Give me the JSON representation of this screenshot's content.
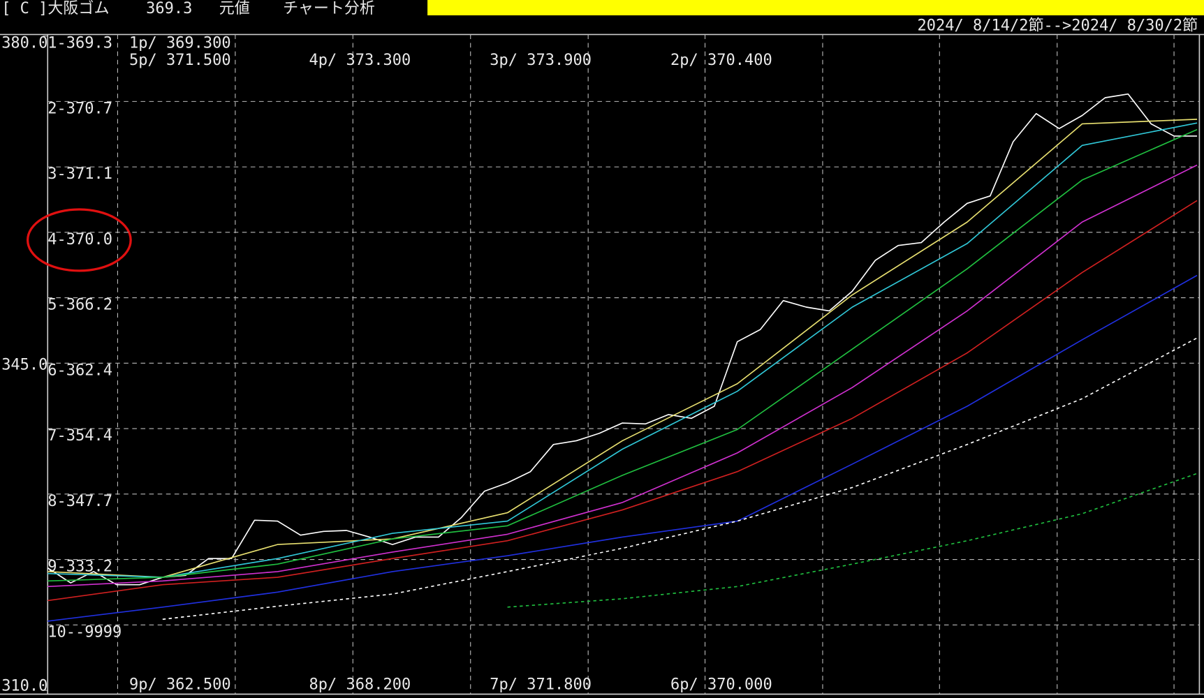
{
  "chart_data": {
    "type": "line",
    "header": {
      "name": "[ C ]大阪ゴム",
      "price": 369.3,
      "mode": "元値",
      "menu": "チャート分析"
    },
    "date_range": "2024/ 8/14/2節-->2024/ 8/30/2節",
    "ylim": [
      310,
      380
    ],
    "yticks": [
      {
        "value": 380,
        "label": "380.0"
      },
      {
        "value": 345,
        "label": "345.0"
      },
      {
        "value": 310,
        "label": "310.0"
      }
    ],
    "grid_lines": [
      373,
      366,
      359,
      352,
      345,
      338,
      331,
      324,
      317
    ],
    "row_labels": [
      "1-369.3",
      "2-370.7",
      "3-371.1",
      "4-370.0",
      "5-366.2",
      "6-362.4",
      "7-354.4",
      "8-347.7",
      "9-333.2",
      "10--9999"
    ],
    "annotations": [
      "1p/ 369.300",
      "5p/ 371.500",
      "4p/ 373.300",
      "3p/ 373.900",
      "2p/ 370.400",
      "9p/ 362.500",
      "8p/ 368.200",
      "7p/ 371.800",
      "6p/ 370.000"
    ],
    "xlim": [
      0,
      50
    ],
    "x": [
      0,
      1,
      2,
      3,
      4,
      5,
      6,
      7,
      8,
      9,
      10,
      11,
      12,
      13,
      14,
      15,
      16,
      17,
      18,
      19,
      20,
      21,
      22,
      23,
      24,
      25,
      26,
      27,
      28,
      29,
      30,
      31,
      32,
      33,
      34,
      35,
      36,
      37,
      38,
      39,
      40,
      41,
      42,
      43,
      44,
      45,
      46,
      47,
      48,
      49,
      50
    ],
    "series": [
      {
        "color": "#ffffff",
        "values": [
          323.1,
          321.5,
          322.7,
          321.3,
          321.3,
          322.1,
          322.3,
          324.1,
          324.1,
          328.2,
          328.1,
          326.6,
          327.0,
          327.1,
          326.4,
          325.6,
          326.4,
          326.4,
          328.5,
          331.3,
          332.2,
          333.4,
          336.3,
          336.7,
          337.5,
          338.6,
          338.5,
          339.5,
          339.1,
          340.4,
          347.3,
          348.6,
          351.7,
          351.0,
          350.6,
          352.7,
          356.0,
          357.6,
          357.9,
          360.1,
          362.1,
          362.9,
          368.7,
          371.7,
          370.1,
          371.5,
          373.4,
          373.8,
          370.6,
          369.3,
          369.3
        ]
      },
      {
        "color": "#e8e070",
        "x": [
          0,
          5,
          10,
          15,
          20,
          25,
          30,
          35,
          40,
          45,
          50
        ],
        "values": [
          322.7,
          322.1,
          325.6,
          326.2,
          329.0,
          336.7,
          342.8,
          352.3,
          360.1,
          370.6,
          371.1
        ]
      },
      {
        "color": "#30c8d8",
        "x": [
          0,
          5,
          10,
          15,
          20,
          25,
          30,
          35,
          40,
          45,
          50
        ],
        "values": [
          322.5,
          322.1,
          324.1,
          326.8,
          328.1,
          335.8,
          342.0,
          351.0,
          357.8,
          368.3,
          370.7
        ]
      },
      {
        "color": "#20c040",
        "x": [
          0,
          5,
          10,
          15,
          20,
          25,
          30,
          35,
          40,
          45,
          50
        ],
        "values": [
          321.7,
          322.1,
          323.5,
          326.2,
          327.6,
          333.0,
          337.9,
          346.5,
          355.1,
          364.6,
          370.0
        ]
      },
      {
        "color": "#d030d0",
        "x": [
          0,
          5,
          10,
          15,
          20,
          25,
          30,
          35,
          40,
          45,
          50
        ],
        "values": [
          321.1,
          321.7,
          322.7,
          324.8,
          326.7,
          330.1,
          335.4,
          342.4,
          350.6,
          360.1,
          366.2
        ]
      },
      {
        "color": "#d02020",
        "x": [
          0,
          5,
          10,
          15,
          20,
          25,
          30,
          35,
          40,
          45,
          50
        ],
        "values": [
          319.6,
          321.3,
          322.1,
          324.1,
          326.0,
          329.3,
          333.4,
          339.1,
          346.1,
          354.7,
          362.4
        ]
      },
      {
        "color": "#2030e0",
        "x": [
          0,
          5,
          10,
          15,
          20,
          25,
          30,
          35,
          40,
          45,
          50
        ],
        "values": [
          317.4,
          318.9,
          320.5,
          322.7,
          324.4,
          326.4,
          328.1,
          334.2,
          340.4,
          347.5,
          354.4
        ]
      },
      {
        "color": "#ffffff",
        "dashed": true,
        "x": [
          0,
          5,
          10,
          15,
          20,
          25,
          30,
          35,
          40,
          45,
          50
        ],
        "values": [
          null,
          317.6,
          319.0,
          320.3,
          322.7,
          325.2,
          328.1,
          331.7,
          336.3,
          341.2,
          347.7
        ]
      },
      {
        "color": "#20c040",
        "dashed": true,
        "x": [
          0,
          5,
          10,
          15,
          20,
          25,
          30,
          35,
          40,
          45,
          50
        ],
        "values": [
          null,
          null,
          null,
          null,
          318.9,
          319.8,
          321.1,
          323.5,
          326.0,
          328.9,
          333.2
        ]
      }
    ]
  }
}
